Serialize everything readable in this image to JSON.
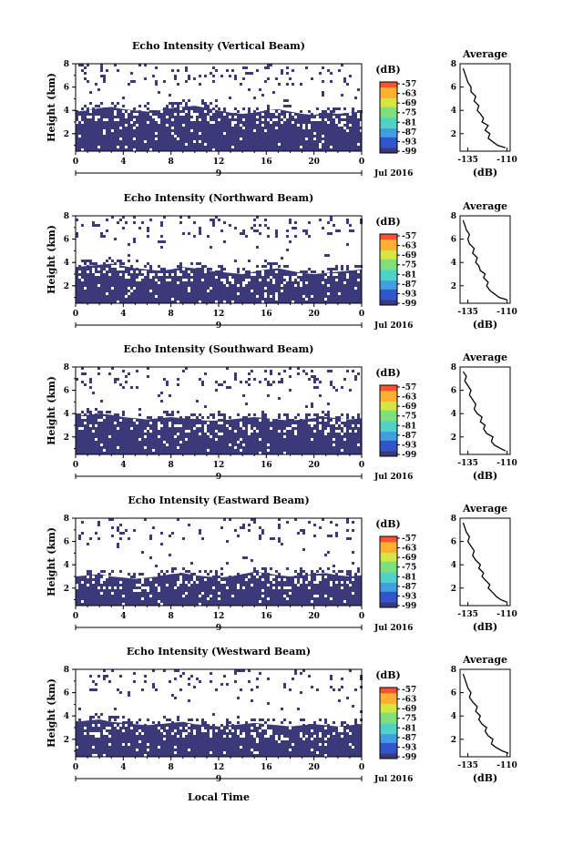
{
  "page": {
    "xlabel_bottom": "Local Time"
  },
  "common": {
    "xticks": [
      "0",
      "4",
      "8",
      "12",
      "16",
      "20",
      "0"
    ],
    "day_label": "9",
    "date_label": "Jul 2016",
    "ylabel": "Height (km)",
    "yticks": [
      "2",
      "4",
      "6",
      "8"
    ],
    "cbar_unit": "(dB)",
    "cbar_ticks": [
      "-57",
      "-63",
      "-69",
      "-75",
      "-81",
      "-87",
      "-93",
      "-99"
    ],
    "avg_title": "Average",
    "avg_xlabel": "(dB)",
    "avg_xticks": [
      "-135",
      "-110"
    ],
    "avg_yticks": [
      "2",
      "4",
      "6",
      "8"
    ]
  },
  "colors": {
    "fill": "#3a3a7a",
    "colorbar": [
      "#3a3a7a",
      "#3355cc",
      "#3f9fe0",
      "#4fd2c8",
      "#7ee07a",
      "#d6e640",
      "#ffb030",
      "#ff5030"
    ]
  },
  "chart_data": [
    {
      "type": "heatmap",
      "title": "Echo Intensity (Vertical Beam)",
      "xlabel": "Local Time",
      "ylabel": "Height (km)",
      "x_range_hours": [
        0,
        24
      ],
      "ylim_km": [
        0.5,
        8
      ],
      "colorbar_db": [
        -99,
        -57
      ],
      "profile_km": [
        3.9,
        4.0,
        4.2,
        4.3,
        4.1,
        4.0,
        3.9,
        4.0,
        4.2,
        4.3,
        4.4,
        4.2,
        4.0,
        3.8,
        3.7,
        3.8,
        4.0,
        4.1,
        3.9,
        3.7,
        3.6,
        3.8,
        3.7,
        3.8,
        3.9
      ],
      "average": {
        "title": "Average",
        "xlabel": "(dB)",
        "xlim": [
          -140,
          -108
        ],
        "ylim_km": [
          0.5,
          8
        ],
        "height_km": [
          0.8,
          1.0,
          1.3,
          1.6,
          2.0,
          2.3,
          2.7,
          3.0,
          3.3,
          3.7,
          4.0,
          4.4,
          4.8,
          5.2,
          5.6,
          6.0,
          6.4,
          6.8,
          7.2,
          7.6
        ],
        "db": [
          -111,
          -116,
          -119,
          -122,
          -121,
          -124,
          -122,
          -126,
          -125,
          -127,
          -129,
          -128,
          -131,
          -130,
          -133,
          -133,
          -135,
          -136,
          -137,
          -138
        ]
      }
    },
    {
      "type": "heatmap",
      "title": "Echo Intensity (Northward Beam)",
      "xlabel": "Local Time",
      "ylabel": "Height (km)",
      "x_range_hours": [
        0,
        24
      ],
      "ylim_km": [
        0.5,
        8
      ],
      "colorbar_db": [
        -99,
        -57
      ],
      "profile_km": [
        3.6,
        3.7,
        3.8,
        3.9,
        3.7,
        3.5,
        3.4,
        3.3,
        3.4,
        3.6,
        3.5,
        3.3,
        3.2,
        3.1,
        3.0,
        3.2,
        3.4,
        3.5,
        3.3,
        3.1,
        3.0,
        3.1,
        3.2,
        3.3,
        3.4
      ],
      "average": {
        "title": "Average",
        "xlabel": "(dB)",
        "xlim": [
          -140,
          -108
        ],
        "ylim_km": [
          0.5,
          8
        ],
        "height_km": [
          0.8,
          1.0,
          1.3,
          1.6,
          2.0,
          2.3,
          2.7,
          3.0,
          3.3,
          3.7,
          4.0,
          4.4,
          4.8,
          5.2,
          5.6,
          6.0,
          6.4,
          6.8,
          7.2,
          7.6
        ],
        "db": [
          -110,
          -115,
          -118,
          -121,
          -123,
          -122,
          -125,
          -124,
          -127,
          -128,
          -130,
          -129,
          -132,
          -131,
          -134,
          -135,
          -134,
          -136,
          -137,
          -138
        ]
      }
    },
    {
      "type": "heatmap",
      "title": "Echo Intensity (Southward Beam)",
      "xlabel": "Local Time",
      "ylabel": "Height (km)",
      "x_range_hours": [
        0,
        24
      ],
      "ylim_km": [
        0.5,
        8
      ],
      "colorbar_db": [
        -99,
        -57
      ],
      "profile_km": [
        3.8,
        3.9,
        4.0,
        3.9,
        3.7,
        3.6,
        3.5,
        3.6,
        3.7,
        3.6,
        3.5,
        3.4,
        3.4,
        3.5,
        3.6,
        3.7,
        3.6,
        3.5,
        3.4,
        3.5,
        3.6,
        3.7,
        3.6,
        3.5,
        3.6
      ],
      "average": {
        "title": "Average",
        "xlabel": "(dB)",
        "xlim": [
          -140,
          -108
        ],
        "ylim_km": [
          0.5,
          8
        ],
        "height_km": [
          0.8,
          1.0,
          1.3,
          1.6,
          2.0,
          2.3,
          2.7,
          3.0,
          3.3,
          3.7,
          4.0,
          4.4,
          4.8,
          5.2,
          5.6,
          6.0,
          6.4,
          6.8,
          7.2,
          7.6
        ],
        "db": [
          -111,
          -114,
          -118,
          -120,
          -119,
          -123,
          -125,
          -124,
          -127,
          -126,
          -129,
          -131,
          -130,
          -132,
          -134,
          -133,
          -135,
          -137,
          -136,
          -138
        ]
      }
    },
    {
      "type": "heatmap",
      "title": "Echo Intensity (Eastward Beam)",
      "xlabel": "Local Time",
      "ylabel": "Height (km)",
      "x_range_hours": [
        0,
        24
      ],
      "ylim_km": [
        0.5,
        8
      ],
      "colorbar_db": [
        -99,
        -57
      ],
      "profile_km": [
        3.0,
        3.1,
        3.2,
        3.0,
        2.9,
        2.8,
        2.9,
        3.0,
        3.2,
        3.3,
        3.1,
        3.0,
        2.9,
        3.0,
        3.2,
        3.4,
        3.3,
        3.1,
        3.0,
        3.1,
        3.2,
        3.3,
        3.1,
        3.0,
        3.1
      ],
      "average": {
        "title": "Average",
        "xlabel": "(dB)",
        "xlim": [
          -140,
          -108
        ],
        "ylim_km": [
          0.5,
          8
        ],
        "height_km": [
          0.8,
          1.0,
          1.3,
          1.6,
          2.0,
          2.3,
          2.7,
          3.0,
          3.3,
          3.7,
          4.0,
          4.4,
          4.8,
          5.2,
          5.6,
          6.0,
          6.4,
          6.8,
          7.2,
          7.6
        ],
        "db": [
          -110,
          -114,
          -117,
          -119,
          -122,
          -121,
          -124,
          -126,
          -125,
          -128,
          -127,
          -130,
          -132,
          -131,
          -133,
          -135,
          -134,
          -136,
          -137,
          -138
        ]
      }
    },
    {
      "type": "heatmap",
      "title": "Echo Intensity (Westward Beam)",
      "xlabel": "Local Time",
      "ylabel": "Height (km)",
      "x_range_hours": [
        0,
        24
      ],
      "ylim_km": [
        0.5,
        8
      ],
      "colorbar_db": [
        -99,
        -57
      ],
      "profile_km": [
        3.5,
        3.6,
        3.7,
        3.5,
        3.4,
        3.3,
        3.2,
        3.3,
        3.4,
        3.5,
        3.3,
        3.2,
        3.1,
        3.2,
        3.3,
        3.4,
        3.3,
        3.2,
        3.1,
        3.2,
        3.3,
        3.2,
        3.1,
        3.2,
        3.3
      ],
      "average": {
        "title": "Average",
        "xlabel": "(dB)",
        "xlim": [
          -140,
          -108
        ],
        "ylim_km": [
          0.5,
          8
        ],
        "height_km": [
          0.8,
          1.0,
          1.3,
          1.6,
          2.0,
          2.3,
          2.7,
          3.0,
          3.3,
          3.7,
          4.0,
          4.4,
          4.8,
          5.2,
          5.6,
          6.0,
          6.4,
          6.8,
          7.2,
          7.6
        ],
        "db": [
          -109,
          -113,
          -117,
          -120,
          -119,
          -122,
          -124,
          -123,
          -126,
          -128,
          -127,
          -130,
          -129,
          -132,
          -134,
          -133,
          -135,
          -136,
          -137,
          -138
        ]
      }
    }
  ]
}
